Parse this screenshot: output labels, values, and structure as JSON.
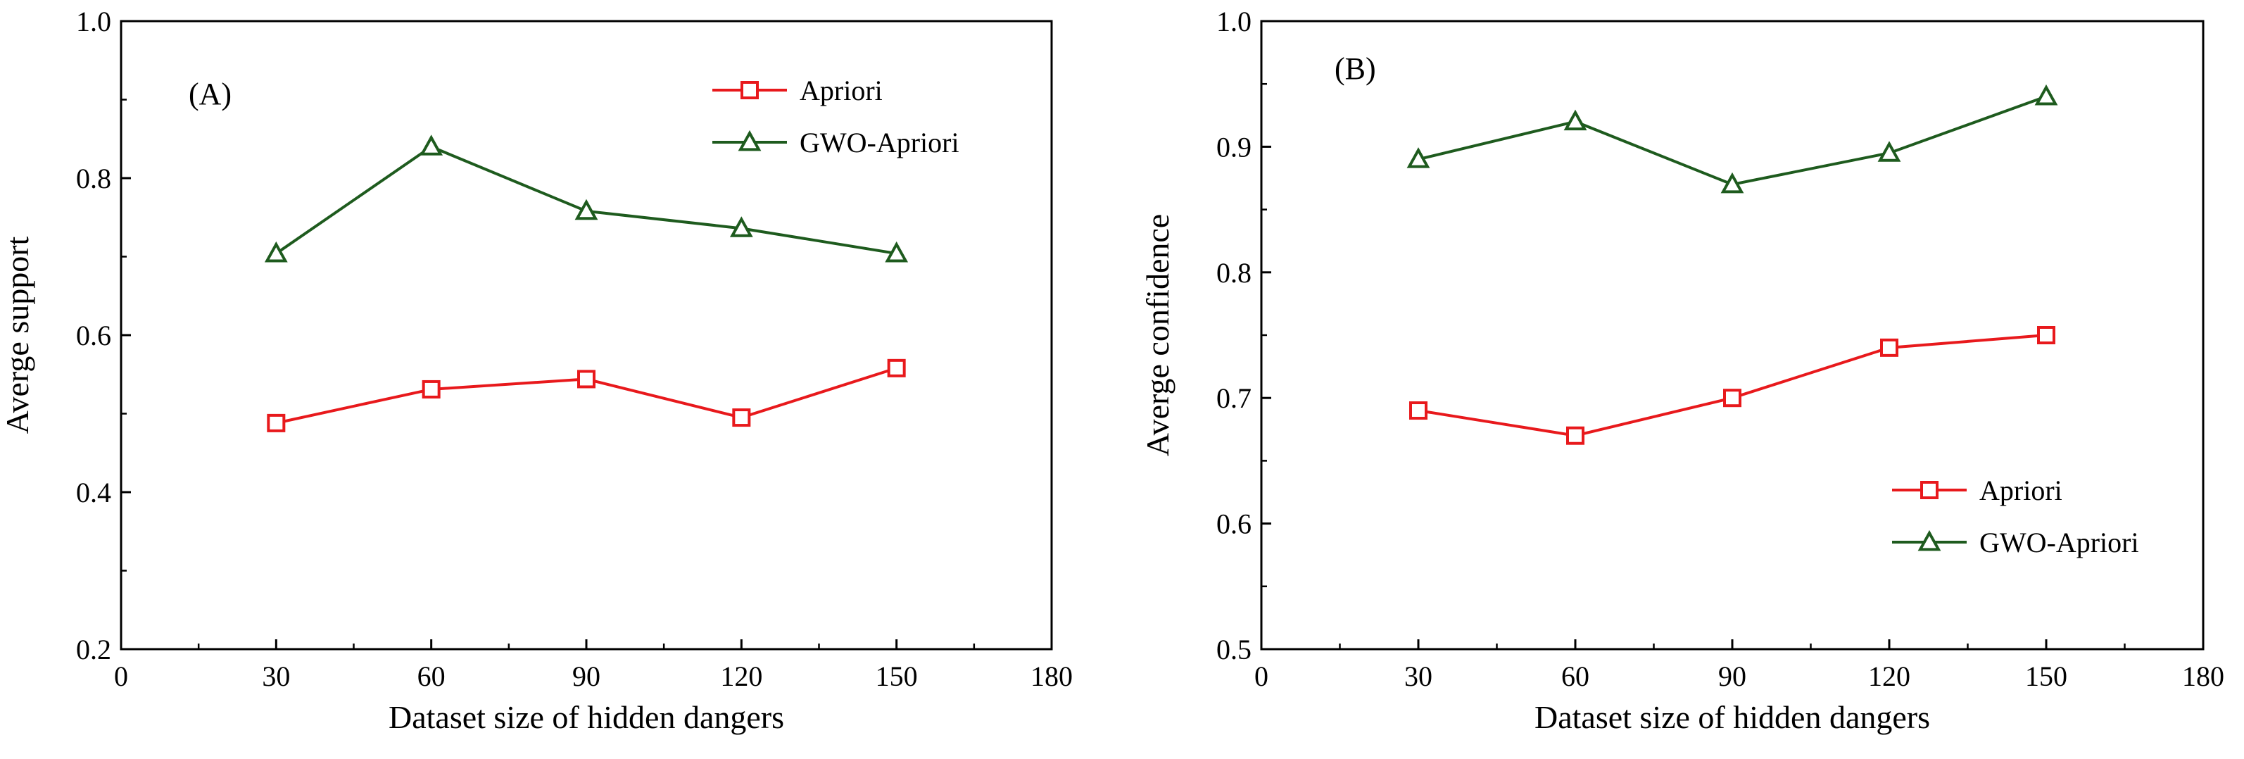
{
  "chart_data": [
    {
      "type": "line",
      "panel_label": "(A)",
      "xlabel": "Dataset size of hidden dangers",
      "ylabel": "Averge support",
      "xlim": [
        0,
        180
      ],
      "ylim": [
        0.2,
        1.0
      ],
      "x_ticks": [
        0,
        30,
        60,
        90,
        120,
        150,
        180
      ],
      "x_tick_labels": [
        "0",
        "30",
        "60",
        "90",
        "120",
        "150",
        "180"
      ],
      "y_ticks": [
        0.2,
        0.4,
        0.6,
        0.8,
        1.0
      ],
      "y_tick_labels": [
        "0.2",
        "0.4",
        "0.6",
        "0.8",
        "1.0"
      ],
      "legend_position": "top-right",
      "x": [
        30,
        60,
        90,
        120,
        150
      ],
      "series": [
        {
          "name": "Apriori",
          "marker": "square",
          "color": "#e8191c",
          "values": [
            0.488,
            0.531,
            0.544,
            0.495,
            0.558
          ]
        },
        {
          "name": "GWO-Apriori",
          "marker": "triangle",
          "color": "#1e5b1e",
          "values": [
            0.704,
            0.84,
            0.758,
            0.736,
            0.704
          ]
        }
      ]
    },
    {
      "type": "line",
      "panel_label": "(B)",
      "xlabel": "Dataset size of hidden dangers",
      "ylabel": "Averge confidence",
      "xlim": [
        0,
        180
      ],
      "ylim": [
        0.5,
        1.0
      ],
      "x_ticks": [
        0,
        30,
        60,
        90,
        120,
        150,
        180
      ],
      "x_tick_labels": [
        "0",
        "30",
        "60",
        "90",
        "120",
        "150",
        "180"
      ],
      "y_ticks": [
        0.5,
        0.6,
        0.7,
        0.8,
        0.9,
        1.0
      ],
      "y_tick_labels": [
        "0.5",
        "0.6",
        "0.7",
        "0.8",
        "0.9",
        "1.0"
      ],
      "legend_position": "bottom-right",
      "x": [
        30,
        60,
        90,
        120,
        150
      ],
      "series": [
        {
          "name": "Apriori",
          "marker": "square",
          "color": "#e8191c",
          "values": [
            0.69,
            0.67,
            0.7,
            0.74,
            0.75
          ]
        },
        {
          "name": "GWO-Apriori",
          "marker": "triangle",
          "color": "#1e5b1e",
          "values": [
            0.89,
            0.92,
            0.87,
            0.895,
            0.94
          ]
        }
      ]
    }
  ]
}
